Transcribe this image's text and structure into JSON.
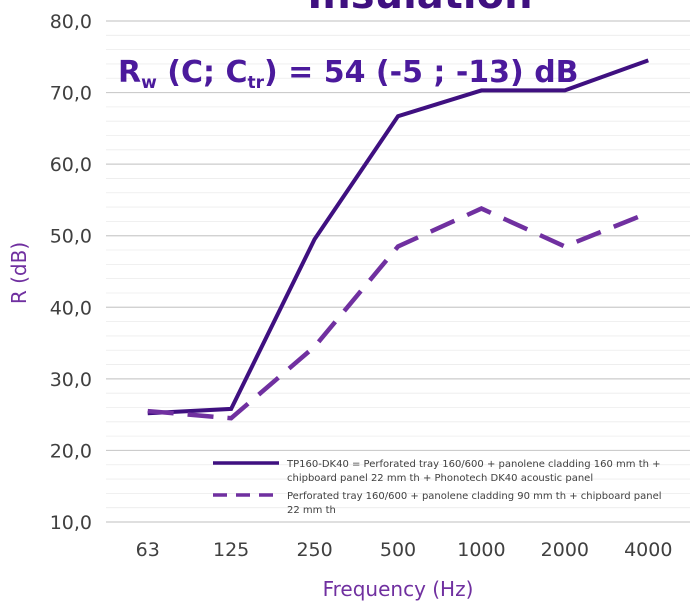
{
  "chart_data": {
    "type": "line",
    "title": "Insulation",
    "annotation": {
      "prefix": "R",
      "w": "w",
      "open": " (C; C",
      "tr": "tr",
      "close": ") = 54 (-5 ; -13) dB"
    },
    "xlabel": "Frequency (Hz)",
    "ylabel": "R (dB)",
    "categories": [
      "63",
      "125",
      "250",
      "500",
      "1000",
      "2000",
      "4000"
    ],
    "ylim": [
      10,
      80
    ],
    "yticks": [
      "10,0",
      "20,0",
      "30,0",
      "40,0",
      "50,0",
      "60,0",
      "70,0",
      "80,0"
    ],
    "grid": true,
    "legend_position": "bottom-right",
    "series": [
      {
        "name": "TP160-DK40 = Perforated tray 160/600 + panolene cladding 160 mm th + chipboard panel 22 mm th + Phonotech DK40 acoustic panel",
        "name_lines": [
          "TP160-DK40 = Perforated tray 160/600 + panolene cladding 160 mm th +",
          "chipboard panel 22 mm th + Phonotech DK40 acoustic panel"
        ],
        "values": [
          25.2,
          25.8,
          49.5,
          66.7,
          70.3,
          70.3,
          74.5
        ],
        "color": "#3f1080",
        "style": "solid"
      },
      {
        "name": "Perforated tray 160/600 + panolene cladding 90 mm th + chipboard panel 22 mm th",
        "name_lines": [
          "Perforated tray 160/600 + panolene cladding 90 mm th + chipboard panel",
          "22 mm th"
        ],
        "values": [
          25.5,
          24.5,
          34.5,
          48.5,
          53.8,
          48.5,
          53.2
        ],
        "color": "#7030a0",
        "style": "dashed"
      }
    ]
  }
}
